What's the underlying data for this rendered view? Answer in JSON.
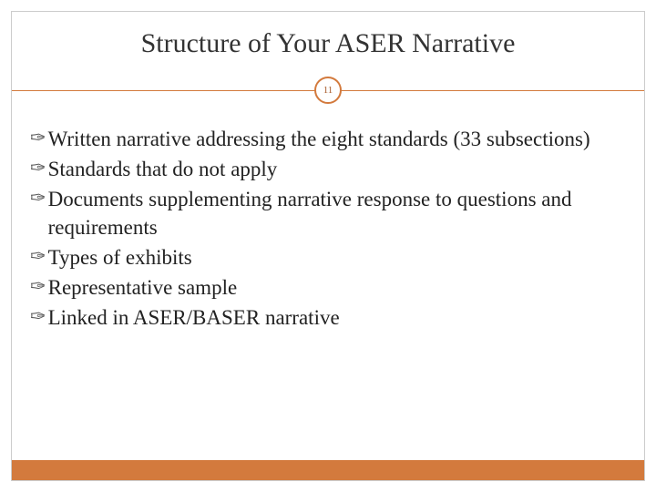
{
  "title": "Structure of Your ASER Narrative",
  "page_number": "11",
  "colors": {
    "accent": "#d37a3d",
    "frame_border": "#cccccc",
    "title_text": "#333333",
    "body_text": "#222222",
    "page_num_text": "#a85a2a",
    "background": "#ffffff"
  },
  "typography": {
    "title_fontsize": 30,
    "body_fontsize": 23,
    "page_num_fontsize": 11,
    "font_family": "Georgia, serif"
  },
  "bullets": [
    "Written narrative addressing the eight standards (33 subsections)",
    "Standards that do not apply",
    "Documents supplementing narrative response to questions and requirements",
    "Types of exhibits",
    "Representative sample",
    "Linked in ASER/BASER narrative"
  ],
  "bullet_glyph": "✑"
}
